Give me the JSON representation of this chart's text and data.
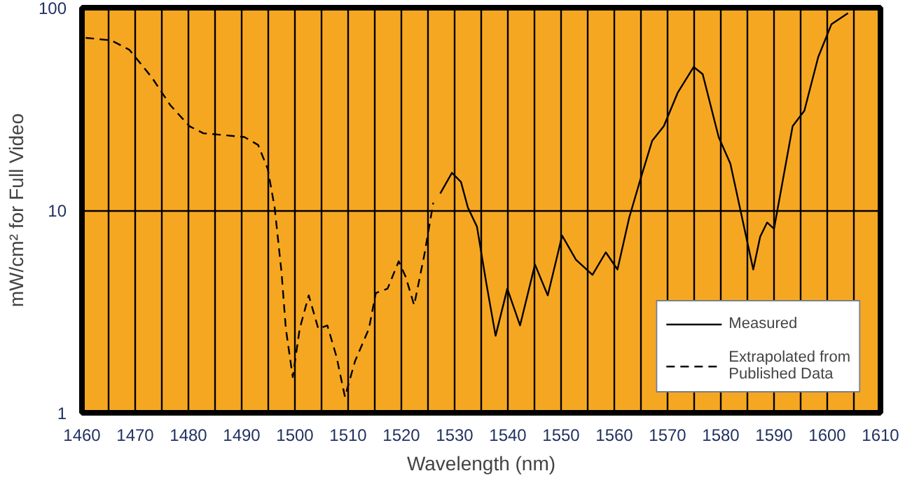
{
  "chart_data": {
    "type": "line",
    "xlabel": "Wavelength (nm)",
    "ylabel": "mW/cm² for Full Video",
    "log": "y",
    "grid": true,
    "legend": "bottom right",
    "xlim": [
      1460,
      1610
    ],
    "ylim": [
      1,
      100
    ],
    "xticks": [
      1460,
      {
        "value": 1465,
        "label": null
      },
      1470,
      {
        "value": 1475,
        "label": null
      },
      1480,
      {
        "value": 1485,
        "label": null
      },
      1490,
      {
        "value": 1495,
        "label": null
      },
      1500,
      {
        "value": 1505,
        "label": null
      },
      1510,
      {
        "value": 1515,
        "label": null
      },
      1520,
      {
        "value": 1525,
        "label": null
      },
      1530,
      {
        "value": 1535,
        "label": null
      },
      1540,
      {
        "value": 1545,
        "label": null
      },
      1550,
      {
        "value": 1555,
        "label": null
      },
      1560,
      {
        "value": 1565,
        "label": null
      },
      1570,
      {
        "value": 1575,
        "label": null
      },
      1580,
      {
        "value": 1585,
        "label": null
      },
      1590,
      {
        "value": 1595,
        "label": null
      },
      1600,
      {
        "value": 1605,
        "label": null
      },
      1610
    ],
    "yticks": [
      1,
      10,
      100
    ],
    "series": [
      {
        "name": "Measured",
        "color": "#000000",
        "line_style": "solid",
        "x": [
          1527.3,
          1529.5,
          1531.2,
          1532.5,
          1534.2,
          1536.0,
          1537.7,
          1539.9,
          1542.3,
          1545.1,
          1547.5,
          1550.2,
          1552.8,
          1555.9,
          1558.4,
          1560.6,
          1562.8,
          1564.9,
          1567.1,
          1569.3,
          1571.9,
          1574.9,
          1576.6,
          1579.6,
          1581.8,
          1586.1,
          1587.4,
          1588.7,
          1590.0,
          1593.5,
          1595.7,
          1598.3,
          1600.8,
          1603.9
        ],
        "values": [
          12.1,
          15.3,
          13.8,
          10.3,
          8.3,
          4.3,
          2.4,
          4.1,
          2.7,
          5.4,
          3.8,
          7.5,
          5.7,
          4.8,
          6.2,
          5.1,
          9.2,
          14.2,
          22,
          26,
          38,
          51,
          47,
          23,
          17,
          5.1,
          7.4,
          8.7,
          8.1,
          26,
          31,
          57,
          83,
          94
        ]
      },
      {
        "name": "Extrapolated from Published Data",
        "color": "#000000",
        "line_style": "dashed",
        "x": [
          1460.7,
          1465.5,
          1468.9,
          1473.2,
          1476.6,
          1480.2,
          1482.8,
          1490.5,
          1493.1,
          1494.9,
          1496.2,
          1497.5,
          1498.3,
          1499.6,
          1500.9,
          1502.6,
          1504.4,
          1506.1,
          1507.8,
          1509.4,
          1511.3,
          1513.9,
          1515.2,
          1517.4,
          1519.5,
          1520.8,
          1522.4,
          1524.3,
          1526.0
        ],
        "values": [
          71,
          69,
          62,
          45,
          33,
          26,
          24,
          23,
          21,
          16,
          10.3,
          4.9,
          2.6,
          1.5,
          2.6,
          3.8,
          2.6,
          2.7,
          1.9,
          1.2,
          1.8,
          2.6,
          3.9,
          4.1,
          5.6,
          4.7,
          3.4,
          6,
          10.9
        ]
      }
    ]
  }
}
